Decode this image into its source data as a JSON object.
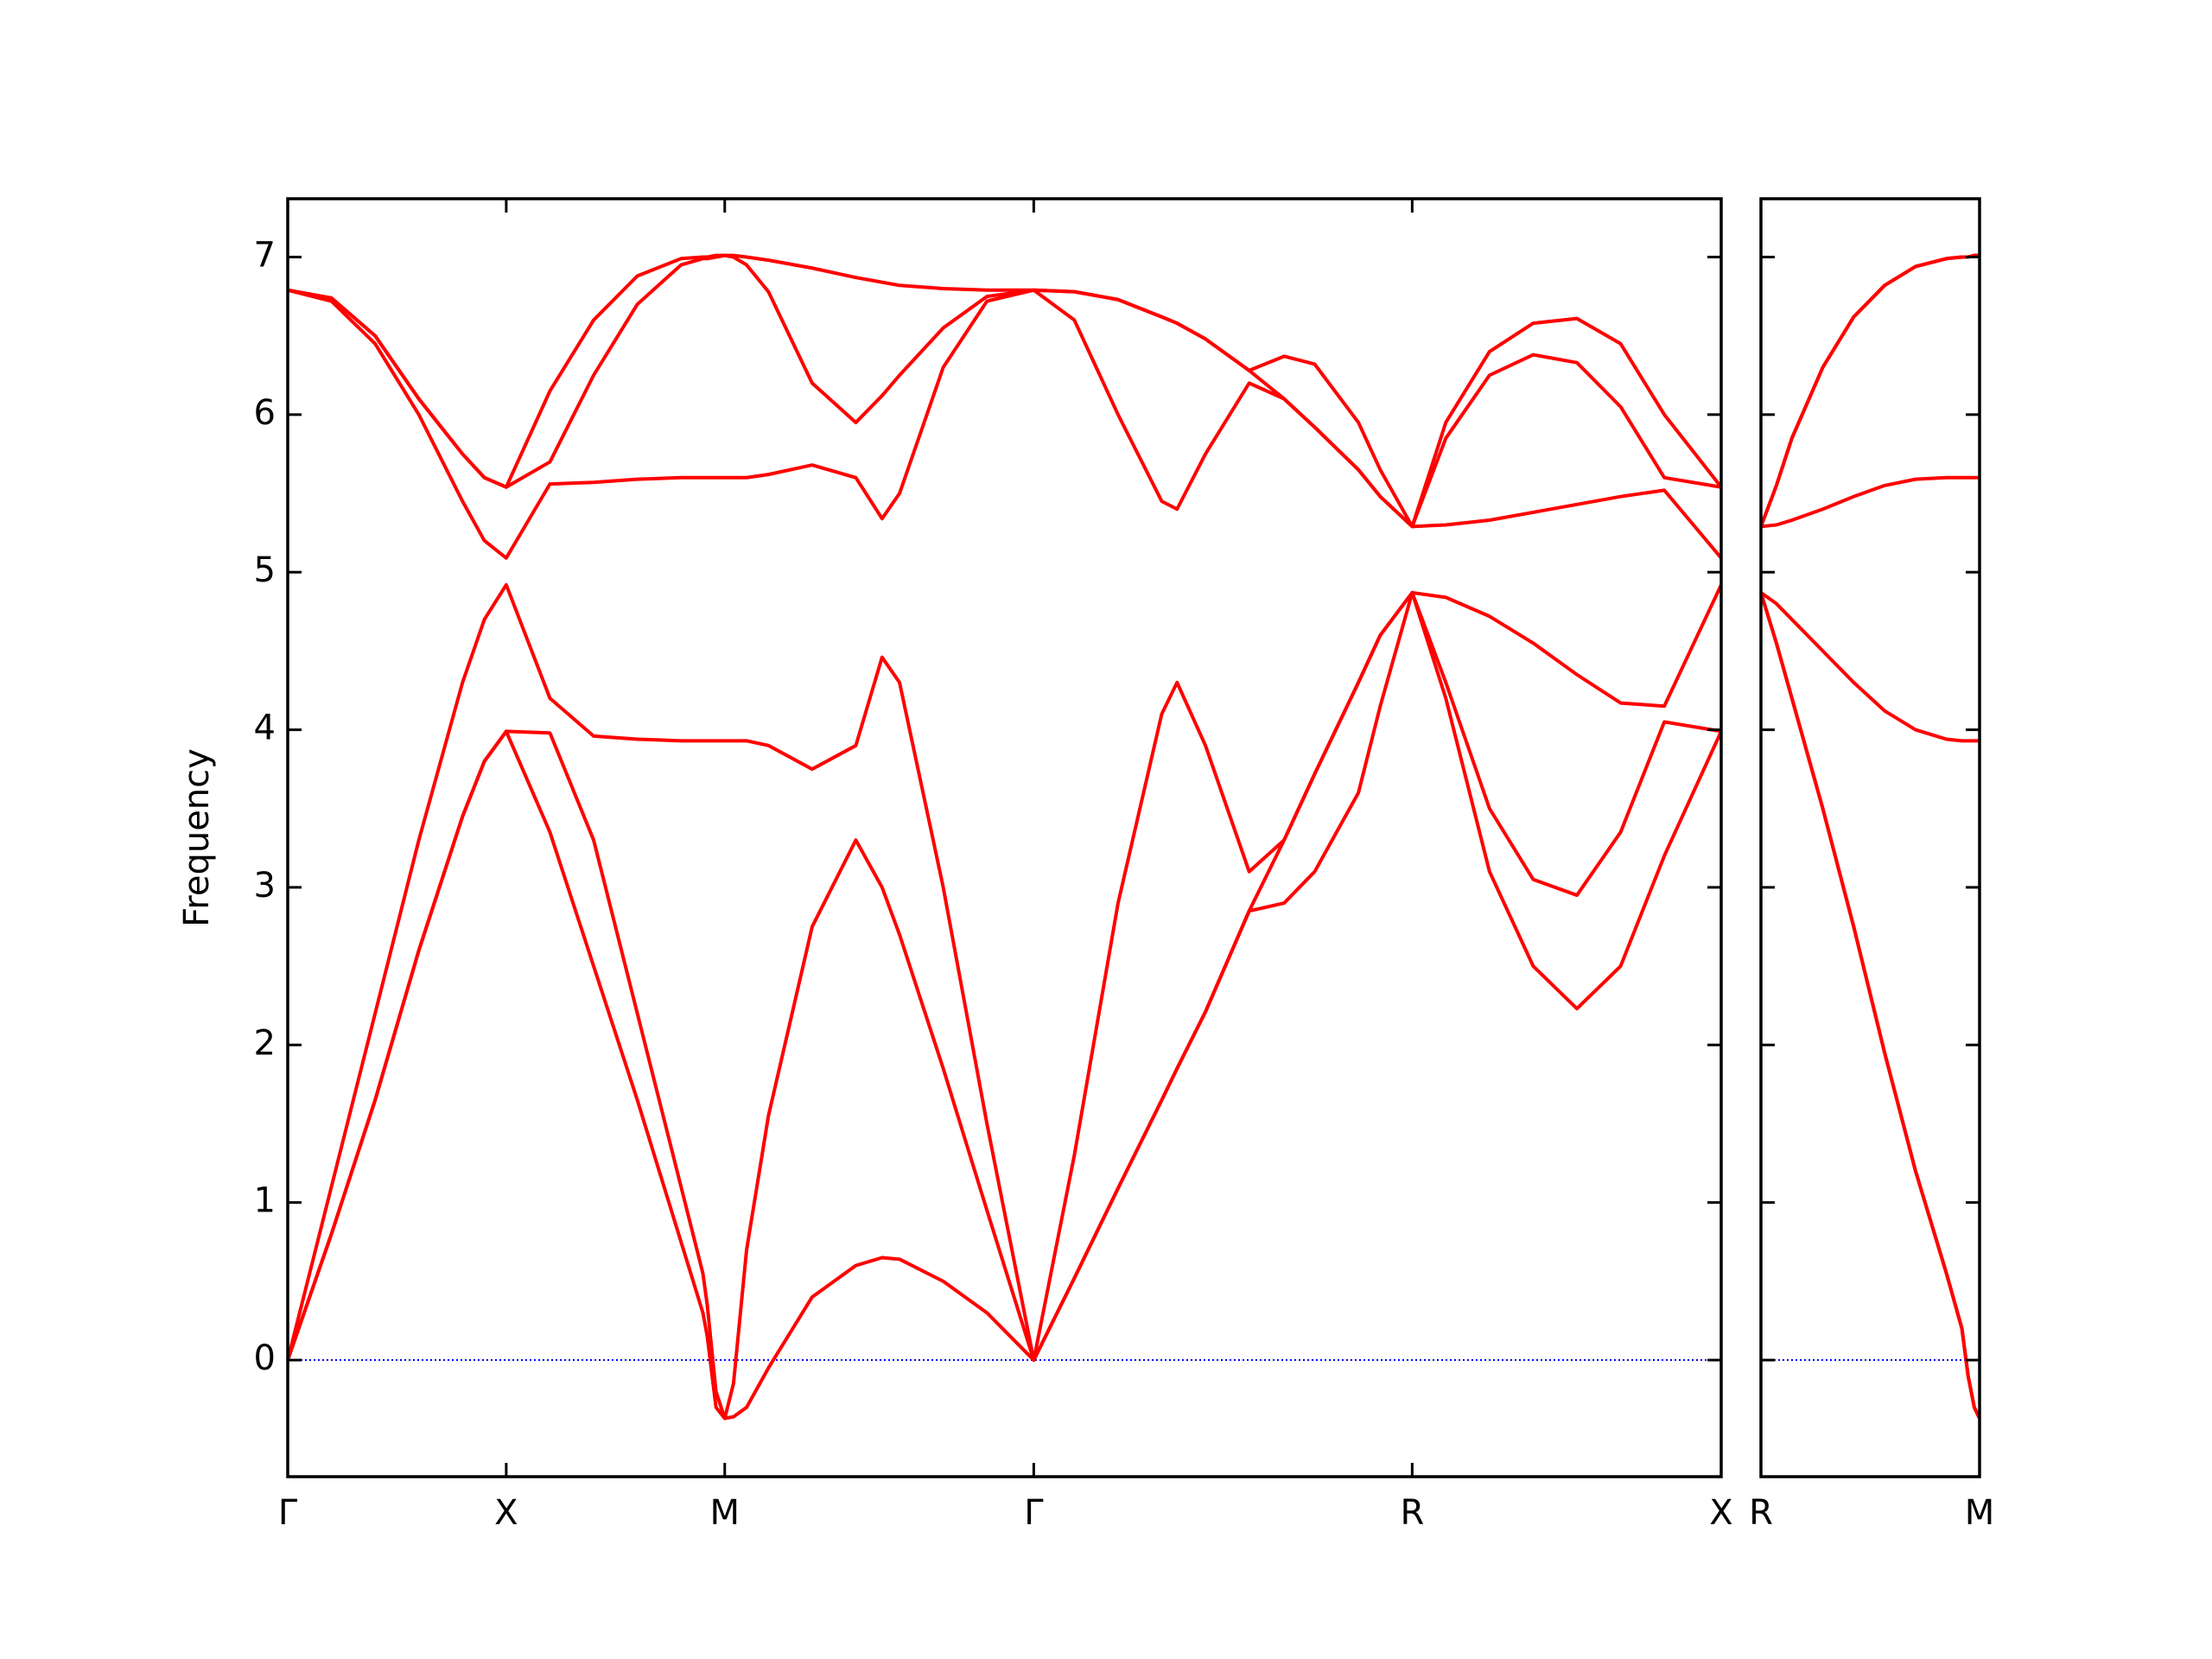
{
  "chart_data": [
    {
      "type": "line",
      "ylabel": "Frequency",
      "xlim": [
        0,
        3.2802
      ],
      "ylim": [
        -0.74,
        7.37
      ],
      "xticks": [
        {
          "value": 0,
          "label": "Γ"
        },
        {
          "value": 0.5,
          "label": "X"
        },
        {
          "value": 1.0,
          "label": "M"
        },
        {
          "value": 1.7071,
          "label": "Γ"
        },
        {
          "value": 2.5731,
          "label": "R"
        },
        {
          "value": 3.2802,
          "label": "X"
        }
      ],
      "yticks": [
        0,
        1,
        2,
        3,
        4,
        5,
        6,
        7
      ],
      "zero_line": {
        "value": 0,
        "color": "#0000ff",
        "style": "dotted"
      },
      "x": [
        0,
        0.1,
        0.2,
        0.3,
        0.4,
        0.45,
        0.5,
        0.6,
        0.7,
        0.8,
        0.9,
        0.95,
        0.96,
        0.98,
        1.0,
        1.02,
        1.05,
        1.1,
        1.2,
        1.3,
        1.36,
        1.4,
        1.5,
        1.6,
        1.7071,
        1.8,
        1.9,
        2.0,
        2.035,
        2.1,
        2.2,
        2.28,
        2.35,
        2.45,
        2.5,
        2.5731,
        2.65,
        2.75,
        2.85,
        2.95,
        3.05,
        3.15,
        3.2802
      ],
      "series": [
        {
          "color": "#ff0000",
          "values": [
            0,
            0.8,
            1.65,
            2.6,
            3.45,
            3.8,
            3.99,
            3.35,
            2.5,
            1.65,
            0.75,
            0.3,
            0.15,
            -0.3,
            -0.37,
            -0.36,
            -0.3,
            -0.05,
            0.4,
            0.6,
            0.65,
            0.64,
            0.5,
            0.3,
            0,
            0.52,
            1.09,
            1.65,
            1.85,
            2.21,
            2.85,
            2.9,
            3.1,
            3.6,
            4.15,
            4.87,
            4.2,
            3.1,
            2.5,
            2.23,
            2.5,
            3.2,
            3.99
          ]
        },
        {
          "color": "#ff0000",
          "values": [
            0,
            0.8,
            1.65,
            2.6,
            3.45,
            3.8,
            3.99,
            3.98,
            3.3,
            2.2,
            1.1,
            0.55,
            0.35,
            -0.2,
            -0.37,
            -0.15,
            0.7,
            1.55,
            2.75,
            3.3,
            3.0,
            2.7,
            1.85,
            0.95,
            0,
            0.52,
            1.09,
            1.65,
            1.85,
            2.21,
            2.85,
            3.3,
            3.72,
            4.3,
            4.6,
            4.87,
            4.3,
            3.5,
            3.05,
            2.95,
            3.35,
            4.05,
            3.99
          ]
        },
        {
          "color": "#ff0000",
          "values": [
            0,
            1.1,
            2.2,
            3.3,
            4.3,
            4.7,
            4.92,
            4.2,
            3.96,
            3.94,
            3.93,
            3.93,
            3.93,
            3.93,
            3.93,
            3.93,
            3.93,
            3.9,
            3.75,
            3.9,
            4.46,
            4.3,
            3.0,
            1.5,
            0,
            1.3,
            2.9,
            4.1,
            4.3,
            3.9,
            3.1,
            3.3,
            3.72,
            4.3,
            4.6,
            4.87,
            4.84,
            4.72,
            4.55,
            4.35,
            4.17,
            4.15,
            4.92
          ]
        },
        {
          "color": "#ff0000",
          "values": [
            6.79,
            6.72,
            6.45,
            6.0,
            5.45,
            5.2,
            5.09,
            5.56,
            5.57,
            5.59,
            5.6,
            5.6,
            5.6,
            5.6,
            5.6,
            5.6,
            5.6,
            5.62,
            5.68,
            5.6,
            5.34,
            5.5,
            6.3,
            6.72,
            6.79,
            6.6,
            6.0,
            5.45,
            5.4,
            5.75,
            6.2,
            6.1,
            5.92,
            5.65,
            5.48,
            5.29,
            5.3,
            5.33,
            5.38,
            5.43,
            5.48,
            5.52,
            5.09
          ]
        },
        {
          "color": "#ff0000",
          "values": [
            6.79,
            6.74,
            6.5,
            6.1,
            5.75,
            5.6,
            5.54,
            5.7,
            6.25,
            6.7,
            6.95,
            6.99,
            6.99,
            7.0,
            7.01,
            7.0,
            6.95,
            6.78,
            6.2,
            5.95,
            6.12,
            6.25,
            6.55,
            6.75,
            6.79,
            6.78,
            6.73,
            6.62,
            6.58,
            6.48,
            6.28,
            6.1,
            5.92,
            5.65,
            5.48,
            5.29,
            5.85,
            6.25,
            6.38,
            6.33,
            6.05,
            5.6,
            5.54
          ]
        },
        {
          "color": "#ff0000",
          "values": [
            6.79,
            6.74,
            6.5,
            6.1,
            5.75,
            5.6,
            5.54,
            6.15,
            6.6,
            6.88,
            6.99,
            7.0,
            7.0,
            7.01,
            7.01,
            7.01,
            7.0,
            6.98,
            6.93,
            6.87,
            6.84,
            6.82,
            6.8,
            6.79,
            6.79,
            6.78,
            6.73,
            6.62,
            6.58,
            6.48,
            6.28,
            6.37,
            6.32,
            5.95,
            5.65,
            5.29,
            5.95,
            6.4,
            6.58,
            6.61,
            6.45,
            6.0,
            5.54
          ]
        }
      ]
    },
    {
      "type": "line",
      "sharey": true,
      "xlim": [
        0,
        0.7071
      ],
      "xticks": [
        {
          "value": 0,
          "label": "R"
        },
        {
          "value": 0.7071,
          "label": "M"
        }
      ],
      "zero_line": {
        "value": 0,
        "color": "#0000ff",
        "style": "dotted"
      },
      "x": [
        0,
        0.05,
        0.1,
        0.2,
        0.3,
        0.4,
        0.5,
        0.6,
        0.65,
        0.67,
        0.69,
        0.7071
      ],
      "series": [
        {
          "color": "#ff0000",
          "values": [
            4.87,
            4.55,
            4.2,
            3.5,
            2.75,
            1.95,
            1.2,
            0.55,
            0.2,
            -0.1,
            -0.3,
            -0.37
          ]
        },
        {
          "color": "#ff0000",
          "values": [
            4.87,
            4.55,
            4.2,
            3.5,
            2.75,
            1.95,
            1.2,
            0.55,
            0.2,
            -0.1,
            -0.3,
            -0.37
          ]
        },
        {
          "color": "#ff0000",
          "values": [
            4.87,
            4.8,
            4.7,
            4.5,
            4.3,
            4.12,
            4.0,
            3.94,
            3.93,
            3.93,
            3.93,
            3.93
          ]
        },
        {
          "color": "#ff0000",
          "values": [
            5.29,
            5.3,
            5.33,
            5.4,
            5.48,
            5.55,
            5.59,
            5.6,
            5.6,
            5.6,
            5.6,
            5.6
          ]
        },
        {
          "color": "#ff0000",
          "values": [
            5.29,
            5.55,
            5.85,
            6.3,
            6.62,
            6.82,
            6.94,
            6.99,
            7.0,
            7.0,
            7.01,
            7.01
          ]
        },
        {
          "color": "#ff0000",
          "values": [
            5.29,
            5.55,
            5.85,
            6.3,
            6.62,
            6.82,
            6.94,
            6.99,
            7.0,
            7.0,
            7.01,
            7.01
          ]
        }
      ]
    }
  ]
}
